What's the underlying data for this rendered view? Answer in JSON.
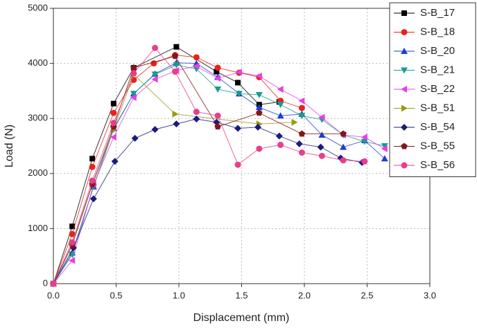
{
  "chart_data": {
    "type": "line",
    "x_label": "Displacement (mm)",
    "y_label": "Load (N)",
    "xlim": [
      0,
      3
    ],
    "ylim": [
      0,
      5000
    ],
    "xticks": [
      {
        "value": 0,
        "label": "0.0"
      },
      {
        "value": 0.5,
        "label": "0.5"
      },
      {
        "value": 1,
        "label": "1.0"
      },
      {
        "value": 1.5,
        "label": "1.5"
      },
      {
        "value": 2,
        "label": "2.0"
      },
      {
        "value": 2.5,
        "label": "2.5"
      },
      {
        "value": 3,
        "label": "3.0"
      }
    ],
    "yticks": [
      0,
      1000,
      2000,
      3000,
      4000,
      5000
    ],
    "grid": true,
    "legend": "top-right",
    "series": [
      {
        "name": "S-B_17",
        "color": "#000000",
        "marker": "square",
        "x": [
          0,
          0.15,
          0.31,
          0.48,
          0.64,
          0.98,
          1.3,
          1.47,
          1.64,
          1.8
        ],
        "values": [
          0,
          1040,
          2270,
          3270,
          3920,
          4300,
          3850,
          3650,
          3250,
          3300
        ]
      },
      {
        "name": "S-B_18",
        "color": "#e8221c",
        "marker": "circle",
        "x": [
          0,
          0.15,
          0.31,
          0.48,
          0.64,
          0.8,
          0.97,
          1.14,
          1.31,
          1.48,
          1.64,
          1.81,
          1.98
        ],
        "values": [
          0,
          900,
          2120,
          3100,
          3700,
          4000,
          4150,
          4110,
          3920,
          3830,
          3750,
          3320,
          3190
        ]
      },
      {
        "name": "S-B_20",
        "color": "#1a3ed8",
        "marker": "triangle-up",
        "x": [
          0,
          0.15,
          0.32,
          0.48,
          0.64,
          0.81,
          0.98,
          1.14,
          1.31,
          1.48,
          1.64,
          1.81,
          1.98,
          2.14,
          2.31,
          2.48,
          2.64
        ],
        "values": [
          0,
          560,
          1760,
          2820,
          3450,
          3810,
          4010,
          4000,
          3750,
          3450,
          3200,
          3050,
          3080,
          2700,
          2480,
          2600,
          2270
        ]
      },
      {
        "name": "S-B_21",
        "color": "#1a9c8c",
        "marker": "triangle-down",
        "x": [
          0,
          0.15,
          0.32,
          0.48,
          0.64,
          0.81,
          0.98,
          1.14,
          1.31,
          1.48,
          1.64,
          1.81,
          1.98,
          2.14,
          2.31,
          2.48,
          2.64
        ],
        "values": [
          0,
          530,
          1760,
          2800,
          3450,
          3800,
          3970,
          3900,
          3530,
          3450,
          3430,
          3250,
          3050,
          2980,
          2700,
          2580,
          2500
        ]
      },
      {
        "name": "S-B_22",
        "color": "#e640e6",
        "marker": "triangle-left",
        "x": [
          0,
          0.15,
          0.32,
          0.48,
          0.64,
          0.81,
          0.98,
          1.14,
          1.31,
          1.48,
          1.64,
          1.81,
          1.98,
          2.14,
          2.31,
          2.48,
          2.64
        ],
        "values": [
          0,
          420,
          1800,
          2660,
          3380,
          3710,
          3870,
          3950,
          3730,
          3840,
          3770,
          3530,
          3320,
          3020,
          2700,
          2660,
          2450
        ]
      },
      {
        "name": "S-B_51",
        "color": "#9a9a14",
        "marker": "triangle-right",
        "x": [
          0,
          0.15,
          0.31,
          0.48,
          0.64,
          0.97,
          1.64,
          1.92
        ],
        "values": [
          0,
          750,
          1800,
          2800,
          3800,
          3080,
          2900,
          2930
        ]
      },
      {
        "name": "S-B_54",
        "color": "#1a1a80",
        "marker": "diamond",
        "x": [
          0,
          0.16,
          0.32,
          0.49,
          0.65,
          0.81,
          0.98,
          1.14,
          1.3,
          1.47,
          1.63,
          1.8,
          1.96,
          2.13,
          2.29,
          2.46
        ],
        "values": [
          0,
          650,
          1540,
          2220,
          2640,
          2800,
          2900,
          2990,
          2930,
          2820,
          2840,
          2680,
          2540,
          2480,
          2280,
          2200
        ]
      },
      {
        "name": "S-B_55",
        "color": "#801818",
        "marker": "pentagon",
        "x": [
          0,
          0.15,
          0.31,
          0.48,
          0.64,
          0.97,
          1.31,
          1.64,
          1.98,
          2.31
        ],
        "values": [
          0,
          700,
          1800,
          2850,
          3920,
          4130,
          2850,
          3100,
          2720,
          2720
        ]
      },
      {
        "name": "S-B_56",
        "color": "#e83e8c",
        "marker": "circle",
        "x": [
          0,
          0.15,
          0.31,
          0.48,
          0.64,
          0.81,
          0.97,
          1.14,
          1.31,
          1.47,
          1.64,
          1.81,
          1.98,
          2.14,
          2.31,
          2.48
        ],
        "values": [
          0,
          750,
          1870,
          2920,
          3820,
          4280,
          3850,
          3120,
          3050,
          2160,
          2450,
          2520,
          2380,
          2320,
          2240,
          2220
        ]
      }
    ]
  }
}
